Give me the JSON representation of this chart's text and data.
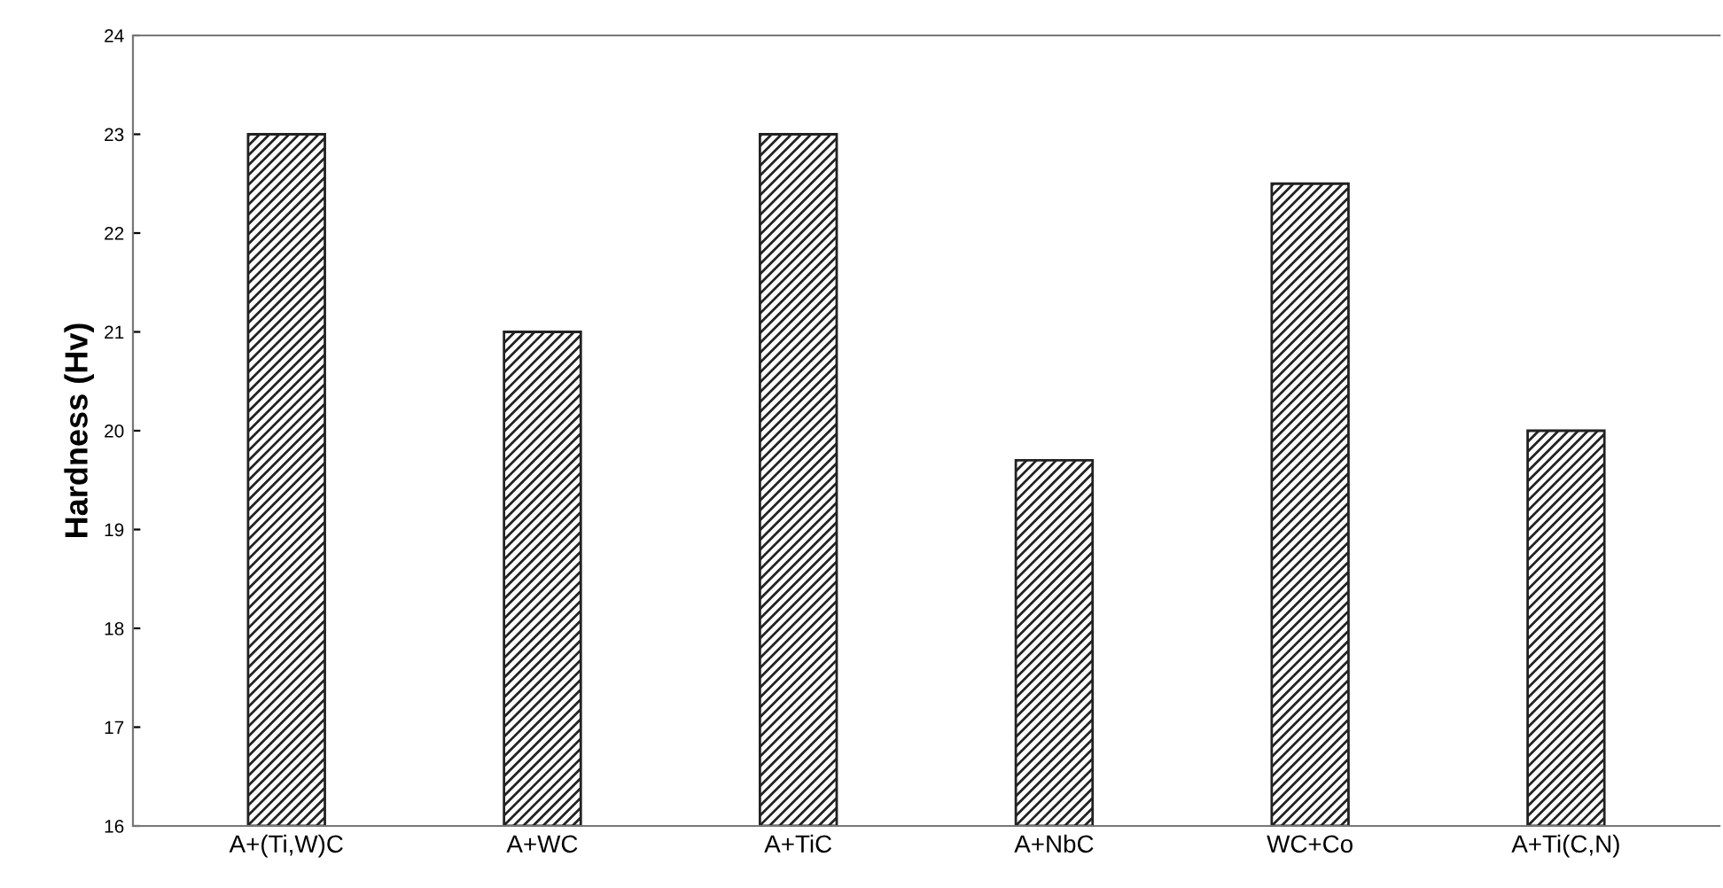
{
  "chart_data": {
    "type": "bar",
    "ylabel": "Hardness (Hv)",
    "categories": [
      "A+(Ti,W)C",
      "A+WC",
      "A+TiC",
      "A+NbC",
      "WC+Co",
      "A+Ti(C,N)"
    ],
    "values": [
      23,
      21,
      23,
      19.7,
      22.5,
      20
    ],
    "color": "#222222",
    "ylim": [
      16,
      24
    ],
    "yticks": [
      16,
      17,
      18,
      19,
      20,
      21,
      22,
      23,
      24
    ],
    "grid": false,
    "legend": false
  }
}
